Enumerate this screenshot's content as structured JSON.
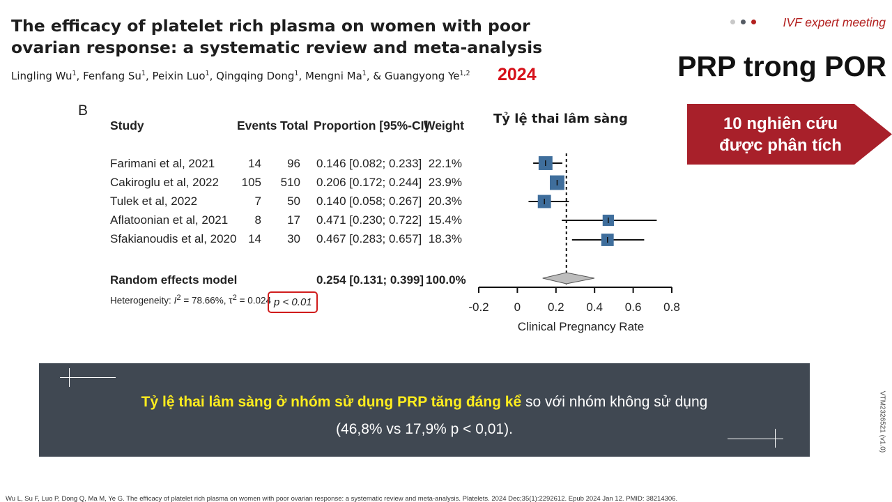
{
  "header": {
    "paper_title": "The efficacy of platelet rich plasma on women with poor ovarian response: a systematic review and meta-analysis",
    "authors": [
      {
        "name": "Lingling Wu",
        "aff": "1",
        "sep": ", "
      },
      {
        "name": "Fenfang Su",
        "aff": "1",
        "sep": ", "
      },
      {
        "name": "Peixin Luo",
        "aff": "1",
        "sep": ", "
      },
      {
        "name": "Qingqing Dong",
        "aff": "1",
        "sep": ", "
      },
      {
        "name": "Mengni Ma",
        "aff": "1",
        "sep": ", & "
      },
      {
        "name": "Guangyong Ye",
        "aff": "1,2",
        "sep": ""
      }
    ],
    "year": "2024",
    "meeting": "IVF expert meeting",
    "slide_title": "PRP trong POR",
    "dot_colors": [
      "#c8c8c8",
      "#555b63",
      "#b3201f"
    ]
  },
  "callout": {
    "line1": "10 nghiên cứu",
    "line2": "được phân tích",
    "color": "#a8202a"
  },
  "forest": {
    "panel": "B",
    "headers": {
      "study": "Study",
      "events": "Events",
      "total": "Total",
      "proportion": "Proportion [95%-CI]",
      "weight": "Weight"
    },
    "rows": [
      {
        "study": "Farimani et al, 2021",
        "events": "14",
        "total": "96",
        "proportion": "0.146 [0.082; 0.233]",
        "weight": "22.1%"
      },
      {
        "study": "Cakiroglu et al, 2022",
        "events": "105",
        "total": "510",
        "proportion": "0.206 [0.172; 0.244]",
        "weight": "23.9%"
      },
      {
        "study": "Tulek et al, 2022",
        "events": "7",
        "total": "50",
        "proportion": "0.140 [0.058; 0.267]",
        "weight": "20.3%"
      },
      {
        "study": "Aflatoonian et al, 2021",
        "events": "8",
        "total": "17",
        "proportion": "0.471 [0.230; 0.722]",
        "weight": "15.4%"
      },
      {
        "study": "Sfakianoudis et al, 2020",
        "events": "14",
        "total": "30",
        "proportion": "0.467 [0.283; 0.657]",
        "weight": "18.3%"
      }
    ],
    "summary": {
      "study": "Random effects model",
      "proportion": "0.254 [0.131; 0.399]",
      "weight": "100.0%"
    },
    "het_prefix": "Heterogeneity: ",
    "het_i2": "I",
    "het_i2_value": " = 78.66%, τ",
    "het_tau_value": " = 0.024",
    "p_value": "p < 0.01"
  },
  "chart_data": {
    "type": "scatter",
    "title": "Tỷ lệ thai lâm sàng",
    "xlabel": "Clinical Pregnancy Rate",
    "xlim": [
      -0.2,
      0.8
    ],
    "x_ticks": [
      "-0.2",
      "0",
      "0.2",
      "0.4",
      "0.6",
      "0.8"
    ],
    "tick_values": [
      -0.2,
      0,
      0.2,
      0.4,
      0.6,
      0.8
    ],
    "points": [
      {
        "estimate": 0.146,
        "lower": 0.082,
        "upper": 0.233,
        "weight": 22.1
      },
      {
        "estimate": 0.206,
        "lower": 0.172,
        "upper": 0.244,
        "weight": 23.9
      },
      {
        "estimate": 0.14,
        "lower": 0.058,
        "upper": 0.267,
        "weight": 20.3
      },
      {
        "estimate": 0.471,
        "lower": 0.23,
        "upper": 0.722,
        "weight": 15.4
      },
      {
        "estimate": 0.467,
        "lower": 0.283,
        "upper": 0.657,
        "weight": 18.3
      }
    ],
    "summary": {
      "estimate": 0.254,
      "lower": 0.131,
      "upper": 0.399
    },
    "reference_line": 0.254,
    "box_color": "#3f6e9c",
    "diamond_color": "#bdbdbd"
  },
  "banner": {
    "highlight": "Tỷ lệ thai lâm sàng ở nhóm sử dụng PRP tăng đáng kể",
    "rest": " so với nhóm không sử dụng",
    "line2": "(46,8% vs 17,9% p < 0,01).",
    "bg_color": "#404852",
    "highlight_color": "#ffed1e"
  },
  "vertical_code": "VTM2326521 (v1.0)",
  "footer_ref": "Wu L, Su F, Luo P, Dong Q, Ma M, Ye G. The efficacy of platelet rich plasma on women with poor ovarian response: a systematic review and meta-analysis. Platelets. 2024 Dec;35(1):2292612. Epub 2024 Jan 12. PMID:  38214306."
}
